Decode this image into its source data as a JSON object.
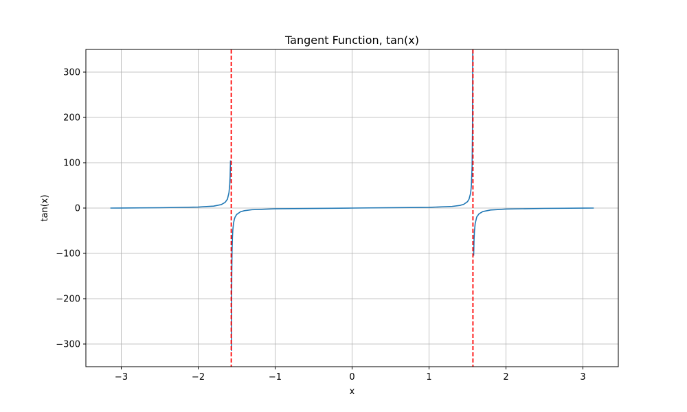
{
  "chart_data": {
    "type": "line",
    "title": "Tangent Function, tan(x)",
    "xlabel": "x",
    "ylabel": "tan(x)",
    "xlim": [
      -3.46,
      3.46
    ],
    "ylim": [
      -350,
      350
    ],
    "grid": true,
    "legend": "none",
    "x_ticks": [
      -3,
      -2,
      -1,
      0,
      1,
      2,
      3
    ],
    "x_tick_labels": [
      "−3",
      "−2",
      "−1",
      "0",
      "1",
      "2",
      "3"
    ],
    "y_ticks": [
      -300,
      -200,
      -100,
      0,
      100,
      200,
      300
    ],
    "y_tick_labels": [
      "−300",
      "−200",
      "−100",
      "0",
      "100",
      "200",
      "300"
    ],
    "series": [
      {
        "function": "tan(x)",
        "x_range": [
          -3.14159,
          3.14159
        ],
        "color": "#1f77b4",
        "branches": [
          {
            "x": [
              -3.1416,
              -3.0,
              -2.5,
              -2.0,
              -1.8,
              -1.7,
              -1.65,
              -1.62,
              -1.6,
              -1.59,
              -1.585,
              -1.5802
            ],
            "y": [
              0,
              0.14,
              0.75,
              2.19,
              4.29,
              7.7,
              12.6,
              19.7,
              34.2,
              52.1,
              70.4,
              105
            ]
          },
          {
            "x": [
              -1.5677,
              -1.5675,
              -1.566,
              -1.564,
              -1.56,
              -1.555,
              -1.55,
              -1.54,
              -1.53,
              -1.52,
              -1.5,
              -1.45,
              -1.4,
              -1.3,
              -1.0,
              0,
              1.0,
              1.3,
              1.4,
              1.45,
              1.5,
              1.52,
              1.54,
              1.55,
              1.56,
              1.565,
              1.568,
              1.5698
            ],
            "y": [
              -315,
              -300,
              -210,
              -148,
              -92.6,
              -63.5,
              -48.1,
              -32.5,
              -24.5,
              -19.7,
              -14.1,
              -8.17,
              -5.8,
              -3.6,
              -1.56,
              0,
              1.56,
              3.6,
              5.8,
              8.17,
              14.1,
              19.7,
              32.5,
              48.1,
              92.6,
              173,
              361,
              318
            ]
          },
          {
            "x": [
              1.5802,
              1.585,
              1.59,
              1.6,
              1.62,
              1.65,
              1.7,
              1.8,
              2.0,
              2.5,
              3.0,
              3.1416
            ],
            "y": [
              -105,
              -70.4,
              -52.1,
              -34.2,
              -19.7,
              -12.6,
              -7.7,
              -4.29,
              -2.19,
              -0.75,
              -0.14,
              0
            ]
          }
        ]
      },
      {
        "type": "vline",
        "x": -1.5708,
        "color": "#ff0000",
        "linestyle": "dashed"
      },
      {
        "type": "vline",
        "x": 1.5708,
        "color": "#ff0000",
        "linestyle": "dashed"
      }
    ]
  }
}
